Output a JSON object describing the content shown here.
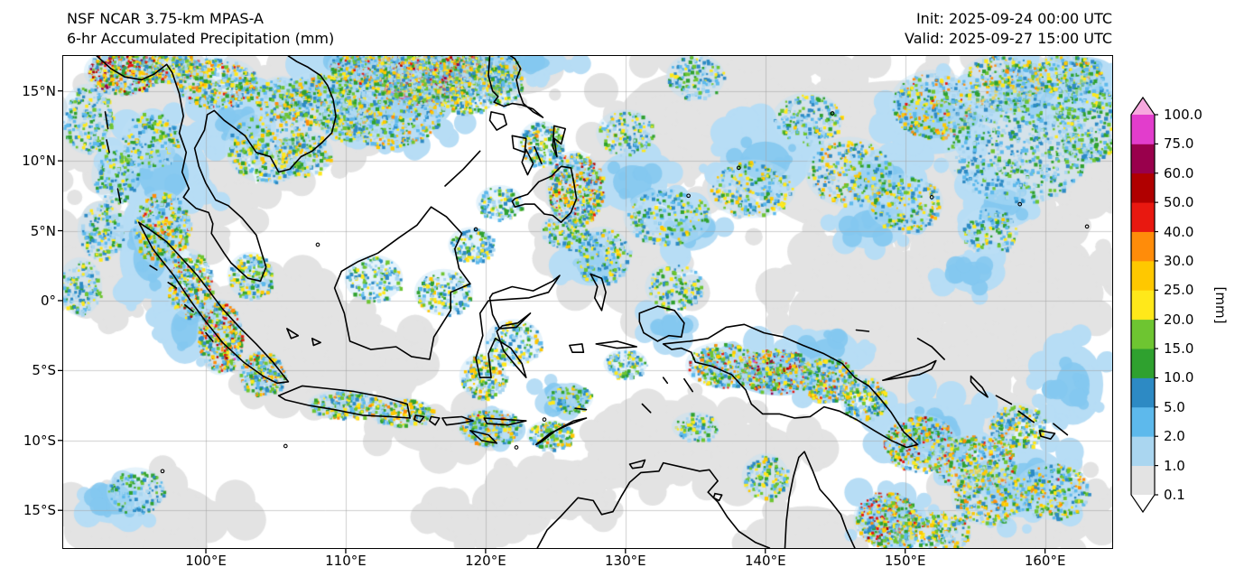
{
  "header": {
    "title_line1": "NSF NCAR 3.75-km MPAS-A",
    "title_line2": "6-hr Accumulated Precipitation (mm)",
    "init_label": "Init: 2025-09-24 00:00 UTC",
    "valid_label": "Valid: 2025-09-27 15:00 UTC"
  },
  "chart_data": {
    "type": "heatmap",
    "title": "NSF NCAR 3.75-km MPAS-A 6-hr Accumulated Precipitation (mm)",
    "map_region": "Maritime Continent / Southeast Asia and Western Pacific",
    "x_axis": {
      "ticks": [
        "100°E",
        "110°E",
        "120°E",
        "130°E",
        "140°E",
        "150°E",
        "160°E"
      ],
      "range_deg_east": [
        89.8,
        164.8
      ]
    },
    "y_axis": {
      "ticks": [
        "15°N",
        "10°N",
        "5°N",
        "0°",
        "5°S",
        "10°S",
        "15°S"
      ],
      "range_deg_north": [
        17.5,
        -17.7
      ]
    },
    "colorbar": {
      "label": "[mm]",
      "levels": [
        0.1,
        1.0,
        2.0,
        5.0,
        10.0,
        15.0,
        20.0,
        25.0,
        30.0,
        40.0,
        50.0,
        60.0,
        75.0,
        100.0
      ],
      "tick_labels": [
        "0.1",
        "1.0",
        "2.0",
        "5.0",
        "10.0",
        "15.0",
        "20.0",
        "25.0",
        "30.0",
        "40.0",
        "50.0",
        "60.0",
        "75.0",
        "100.0"
      ],
      "segment_colors": [
        "#e3e3e3",
        "#aad6f0",
        "#5db9ec",
        "#2d8ac4",
        "#2fa12f",
        "#6ec531",
        "#ffe81a",
        "#ffc800",
        "#ff8c0a",
        "#e81810",
        "#b00000",
        "#99004c",
        "#e23dcc"
      ],
      "under_color": "#ffffff",
      "over_color": "#f7a8de"
    },
    "precip_field": {
      "gray_regions": [
        [
          150,
          10,
          16,
          8
        ],
        [
          136,
          13,
          9,
          5
        ],
        [
          158,
          1,
          8,
          5
        ],
        [
          146,
          -1,
          6,
          4
        ],
        [
          95,
          12,
          7,
          6
        ],
        [
          93,
          3,
          5,
          5
        ],
        [
          107,
          13,
          7,
          5
        ],
        [
          100,
          8,
          5,
          4
        ],
        [
          122,
          16.5,
          5,
          2.5
        ],
        [
          96,
          -15.5,
          7,
          3.5
        ],
        [
          109,
          -4,
          8,
          4
        ],
        [
          104,
          -1,
          5,
          4
        ],
        [
          128,
          5,
          5,
          5
        ],
        [
          133,
          -10,
          6,
          4
        ],
        [
          139,
          -11,
          5,
          3
        ],
        [
          150,
          -4,
          7,
          4
        ],
        [
          159,
          -15,
          7,
          4
        ],
        [
          143,
          -16.5,
          5,
          2.5
        ],
        [
          125,
          -13.5,
          5,
          3
        ],
        [
          119,
          -16,
          4,
          2
        ],
        [
          154,
          -6,
          5,
          4
        ],
        [
          162,
          11,
          4,
          6
        ],
        [
          131,
          1,
          4,
          3
        ],
        [
          117,
          -9.5,
          5,
          2
        ]
      ],
      "blue_regions": [
        [
          113.5,
          14.5,
          6,
          4
        ],
        [
          109,
          16,
          4,
          2.5
        ],
        [
          97,
          9,
          4.5,
          4.5
        ],
        [
          102.5,
          12.5,
          3.5,
          3
        ],
        [
          96,
          3,
          3,
          4
        ],
        [
          123,
          17,
          4,
          1.5
        ],
        [
          130.5,
          8.5,
          3.5,
          3
        ],
        [
          140,
          10,
          4.5,
          3.5
        ],
        [
          152,
          13,
          5,
          3.5
        ],
        [
          159,
          15,
          4.5,
          2.5
        ],
        [
          157,
          7,
          3.5,
          2.5
        ],
        [
          147.5,
          5.5,
          3.5,
          2.5
        ],
        [
          134.5,
          5,
          3,
          2
        ],
        [
          127.5,
          2.5,
          2.5,
          2
        ],
        [
          141,
          -5,
          5,
          2.5
        ],
        [
          152,
          -9.5,
          5,
          3.5
        ],
        [
          158.5,
          -13,
          4.5,
          3.5
        ],
        [
          149,
          -15.5,
          3.5,
          2.5
        ],
        [
          120,
          -9,
          2.5,
          1.5
        ],
        [
          98.5,
          -2,
          2.5,
          3.5
        ],
        [
          93.5,
          -14.5,
          3.5,
          2
        ],
        [
          125.5,
          -7,
          2.5,
          1.5
        ],
        [
          133,
          -2,
          2.5,
          1.5
        ],
        [
          144.5,
          -3.5,
          3,
          2
        ],
        [
          110.5,
          16.5,
          4,
          1.8
        ],
        [
          163,
          16,
          3,
          2
        ],
        [
          162,
          -6,
          3,
          4
        ],
        [
          155,
          2,
          3,
          2
        ],
        [
          148,
          9,
          3,
          2
        ]
      ],
      "convective_clusters": [
        [
          115.5,
          16.2,
          3.5,
          2.2,
          1300,
          0.92
        ],
        [
          113,
          13.8,
          4,
          2.8,
          700,
          0.55
        ],
        [
          117.6,
          17,
          2.6,
          1.4,
          450,
          0.8
        ],
        [
          111,
          16.8,
          2.2,
          1.2,
          300,
          0.6
        ],
        [
          118.8,
          14.8,
          2,
          1.4,
          260,
          0.55
        ],
        [
          120.5,
          16.5,
          2,
          1.2,
          200,
          0.5
        ],
        [
          94,
          16.4,
          2.6,
          1.6,
          500,
          0.88
        ],
        [
          97.5,
          16.8,
          2,
          1.2,
          300,
          0.7
        ],
        [
          100.7,
          15.6,
          3,
          1.8,
          450,
          0.62
        ],
        [
          104.5,
          11,
          3,
          2.5,
          320,
          0.42
        ],
        [
          108,
          14.3,
          2.6,
          2,
          280,
          0.5
        ],
        [
          105.5,
          14.5,
          2,
          1.5,
          200,
          0.5
        ],
        [
          96.8,
          5.2,
          2,
          2.6,
          380,
          0.6
        ],
        [
          98.8,
          1.2,
          1.6,
          2.4,
          340,
          0.68
        ],
        [
          101,
          -2.6,
          1.6,
          2.6,
          420,
          0.76
        ],
        [
          104,
          -5.2,
          1.6,
          1.6,
          260,
          0.6
        ],
        [
          103.2,
          1.8,
          1.6,
          1.6,
          200,
          0.4
        ],
        [
          110,
          -7.4,
          2.6,
          1,
          240,
          0.55
        ],
        [
          114,
          -8,
          2.2,
          1,
          200,
          0.5
        ],
        [
          120.3,
          -9,
          2.2,
          1.3,
          260,
          0.6
        ],
        [
          124.6,
          -9.6,
          1.6,
          1,
          160,
          0.5
        ],
        [
          119.8,
          -5.4,
          1.6,
          1.6,
          200,
          0.5
        ],
        [
          122,
          -3,
          2,
          1.6,
          160,
          0.4
        ],
        [
          117,
          0.6,
          2,
          1.6,
          160,
          0.4
        ],
        [
          112,
          1.6,
          2,
          1.6,
          150,
          0.35
        ],
        [
          126.4,
          8,
          2,
          2.6,
          480,
          0.72
        ],
        [
          124,
          11.2,
          1.6,
          1.6,
          200,
          0.5
        ],
        [
          121,
          15.6,
          1.6,
          1.6,
          160,
          0.45
        ],
        [
          128.3,
          3.2,
          2,
          2,
          200,
          0.4
        ],
        [
          133,
          6,
          3,
          2,
          240,
          0.42
        ],
        [
          139,
          8,
          3,
          2,
          260,
          0.45
        ],
        [
          146,
          9.2,
          3,
          2.4,
          300,
          0.5
        ],
        [
          152,
          14,
          3,
          2.4,
          420,
          0.6
        ],
        [
          157,
          15.6,
          3,
          2,
          380,
          0.55
        ],
        [
          161.5,
          16.2,
          2.6,
          1.4,
          260,
          0.5
        ],
        [
          150,
          7,
          2.6,
          2,
          240,
          0.45
        ],
        [
          156,
          5,
          2,
          1.6,
          150,
          0.35
        ],
        [
          133.5,
          1,
          2,
          1.6,
          150,
          0.35
        ],
        [
          137,
          -4.6,
          2.6,
          1.6,
          340,
          0.66
        ],
        [
          140.8,
          -5,
          2.6,
          1.6,
          450,
          0.82
        ],
        [
          144.4,
          -5.6,
          2,
          1.6,
          300,
          0.6
        ],
        [
          147,
          -7,
          1.6,
          1.6,
          200,
          0.5
        ],
        [
          151,
          -10.2,
          2.6,
          2,
          400,
          0.72
        ],
        [
          155,
          -11.6,
          3,
          2,
          380,
          0.64
        ],
        [
          158,
          -9,
          2,
          1.6,
          240,
          0.5
        ],
        [
          160.5,
          -13.6,
          2.6,
          2,
          300,
          0.56
        ],
        [
          148.6,
          -15.6,
          2.2,
          2,
          420,
          0.76
        ],
        [
          152,
          -16.6,
          2.6,
          1.6,
          300,
          0.6
        ],
        [
          156,
          -14,
          2.6,
          2,
          300,
          0.55
        ],
        [
          140,
          -12.6,
          1.6,
          1.6,
          150,
          0.4
        ],
        [
          135,
          -9,
          1.6,
          1,
          100,
          0.3
        ],
        [
          126,
          -7,
          1.6,
          1,
          130,
          0.42
        ],
        [
          130,
          -4.5,
          1.5,
          1,
          120,
          0.35
        ],
        [
          93.5,
          9,
          1.6,
          2,
          150,
          0.3
        ],
        [
          95,
          -13.6,
          2,
          1.6,
          150,
          0.22
        ],
        [
          158,
          11,
          5,
          4,
          700,
          0.2
        ],
        [
          163,
          13,
          2.6,
          3,
          400,
          0.3
        ],
        [
          130,
          12,
          2,
          1.6,
          150,
          0.35
        ],
        [
          135,
          16,
          2,
          1.6,
          150,
          0.3
        ],
        [
          143,
          13,
          2.4,
          1.8,
          200,
          0.35
        ],
        [
          121,
          7,
          1.6,
          1.2,
          120,
          0.35
        ],
        [
          125.6,
          5,
          1.6,
          1.2,
          140,
          0.4
        ],
        [
          119,
          4,
          1.6,
          1.2,
          120,
          0.35
        ],
        [
          96,
          11.5,
          2,
          2,
          200,
          0.4
        ],
        [
          92.5,
          5,
          1.6,
          2,
          160,
          0.35
        ],
        [
          107,
          10.5,
          2,
          1.6,
          180,
          0.45
        ],
        [
          110,
          13,
          2,
          1.5,
          180,
          0.45
        ],
        [
          91.5,
          13,
          1.8,
          2.4,
          220,
          0.3
        ],
        [
          91,
          1,
          1.5,
          2,
          150,
          0.3
        ]
      ]
    }
  }
}
